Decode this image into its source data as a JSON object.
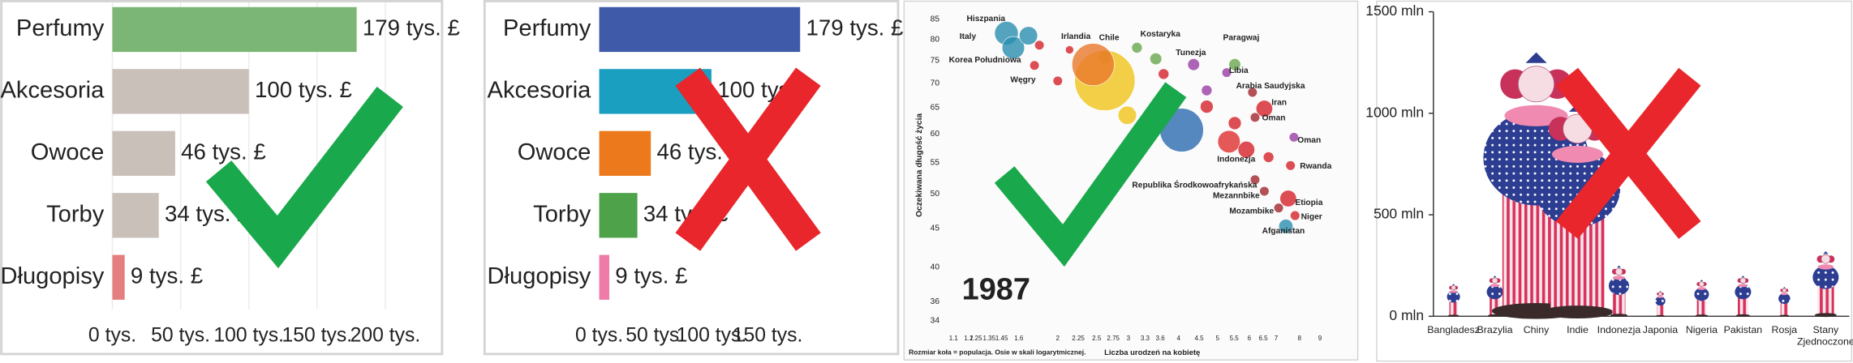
{
  "chart_data": [
    {
      "type": "bar",
      "orientation": "horizontal",
      "categories": [
        "Perfumy",
        "Akcesoria",
        "Owoce",
        "Torby",
        "Długopisy"
      ],
      "values": [
        179,
        100,
        46,
        34,
        9
      ],
      "value_labels": [
        "179 tys. £",
        "100 tys. £",
        "46 tys. £",
        "34 tys. £",
        "9 tys. £"
      ],
      "colors": [
        "#7cb676",
        "#c9c0ba",
        "#c9c0ba",
        "#c9c0ba",
        "#e57f7f"
      ],
      "xlim": [
        0,
        200
      ],
      "xticks": [
        {
          "value": 0,
          "label": "0 tys."
        },
        {
          "value": 50,
          "label": "50 tys."
        },
        {
          "value": 100,
          "label": "100 tys."
        },
        {
          "value": 150,
          "label": "150 tys."
        },
        {
          "value": 200,
          "label": "200 tys."
        }
      ],
      "grid": true
    },
    {
      "type": "bar",
      "orientation": "horizontal",
      "categories": [
        "Perfumy",
        "Akcesoria",
        "Owoce",
        "Torby",
        "Długopisy"
      ],
      "values": [
        179,
        100,
        46,
        34,
        9
      ],
      "value_labels": [
        "179 tys. £",
        "100 tys. £",
        "46 tys. £",
        "34 tys. £",
        "9 tys. £"
      ],
      "colors": [
        "#3f5aa8",
        "#1a9fc0",
        "#ec7a1c",
        "#4ea24a",
        "#f07aa8"
      ],
      "xlim": [
        0,
        180
      ],
      "xticks": [
        {
          "value": 0,
          "label": "0 tys."
        },
        {
          "value": 50,
          "label": "50 tys."
        },
        {
          "value": 100,
          "label": "100 tys."
        },
        {
          "value": 150,
          "label": "150 tys."
        }
      ],
      "grid": false
    },
    {
      "type": "scatter",
      "annotation": "1987",
      "xlabel": "Liczba urodzeń na kobietę",
      "ylabel": "Oczekiwana długość życia",
      "note": "Rozmiar koła = populacja. Osie w skali logarytmicznej.",
      "xscale": "log",
      "yscale": "log",
      "xlim": [
        1.05,
        9.5
      ],
      "ylim": [
        33,
        87
      ],
      "xticks": [
        1.1,
        1.2,
        1.25,
        1.35,
        1.45,
        1.6,
        2,
        2.25,
        2.5,
        2.75,
        3,
        3.3,
        3.6,
        4,
        4.5,
        5,
        5.5,
        6,
        6.5,
        7,
        8,
        9
      ],
      "yticks": [
        34,
        36,
        40,
        45,
        50,
        55,
        60,
        65,
        70,
        75,
        80,
        85
      ],
      "x": [
        1.49,
        1.55,
        1.69,
        1.75,
        2.14,
        2.62,
        2.62,
        2.45,
        3.51,
        5.52,
        4.36,
        4.07,
        5.34,
        5.27,
        6.11,
        6.54,
        6.2,
        7.75,
        7.6,
        6.2,
        7.5,
        6.54,
        7.1,
        7.8,
        7.4,
        1.8,
        3.15,
        3.67,
        4.7,
        4.7,
        5.52,
        5.9,
        6.7,
        2.98,
        2.0
      ],
      "values": [
        81.5,
        78,
        80.9,
        73.9,
        77.5,
        75.9,
        70.6,
        74.1,
        75.4,
        74.1,
        74.1,
        60.7,
        58.6,
        72.3,
        68.1,
        64.8,
        63.1,
        59.4,
        54.5,
        52.2,
        49.3,
        50.4,
        47.9,
        46.8,
        45.3,
        78.6,
        78,
        72,
        68.5,
        65.2,
        62,
        57.2,
        55.9,
        63.5,
        70.5
      ],
      "sizes": [
        100,
        90,
        60,
        16,
        12,
        30,
        650,
        320,
        25,
        25,
        25,
        340,
        90,
        16,
        16,
        49,
        16,
        16,
        16,
        16,
        49,
        16,
        16,
        16,
        36,
        16,
        20,
        20,
        20,
        30,
        30,
        50,
        20,
        60,
        16
      ],
      "labels": [
        "Hiszpania",
        "Italy",
        "Korea Południowa",
        "Węgry",
        "Irlandia",
        "Chile",
        null,
        null,
        "Kostaryka",
        "Paragwaj",
        "Tunezja",
        null,
        "Indonezja",
        "Libia",
        "Arabia Saudyjska",
        "Iran",
        "Oman",
        "Oman",
        "Rwanda",
        "Republika Środkowoafrykańska",
        "Etiopia",
        "Mezannbike",
        "Mozambike",
        "Niger",
        "Afganistan",
        null,
        null,
        null,
        null,
        null,
        null,
        null,
        null,
        null,
        null
      ],
      "colors": [
        "#2a8fb0",
        "#2a8fb0",
        "#2a8fb0",
        "#d6232a",
        "#d6232a",
        "#6aa84f",
        "#f0c419",
        "#e8782a",
        "#6aa84f",
        "#6aa84f",
        "#9b3fa5",
        "#2b6cb0",
        "#e0302f",
        "#9b3fa5",
        "#a0282e",
        "#d6232a",
        "#a0282e",
        "#9b3fa5",
        "#d6232a",
        "#a0282e",
        "#d6232a",
        "#a0282e",
        "#a0282e",
        "#d6232a",
        "#2a8fb0",
        "#d6232a",
        "#6aa84f",
        "#d6232a",
        "#9b3fa5",
        "#d6232a",
        "#d6232a",
        "#d6232a",
        "#d6232a",
        "#f0c419",
        "#d6232a"
      ]
    },
    {
      "type": "pictogram",
      "categories": [
        "Bangladesz",
        "Brazylia",
        "Chiny",
        "Indie",
        "Indonezja",
        "Japonia",
        "Nigeria",
        "Pakistan",
        "Rosja",
        "Stany Zjednoczone"
      ],
      "values": [
        160,
        200,
        1300,
        1050,
        250,
        125,
        180,
        200,
        145,
        320
      ],
      "ylim": [
        0,
        1500
      ],
      "yticks": [
        {
          "value": 0,
          "label": "0 mln"
        },
        {
          "value": 500,
          "label": "500 mln"
        },
        {
          "value": 1000,
          "label": "1000 mln"
        },
        {
          "value": 1500,
          "label": "1500 mln"
        }
      ]
    }
  ]
}
